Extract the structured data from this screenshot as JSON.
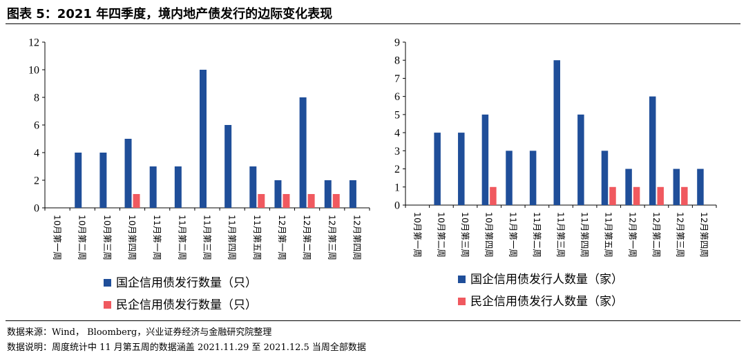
{
  "figure": {
    "title": "图表 5：2021 年四季度，境内地产债发行的边际变化表现",
    "source": "数据来源：Wind，  Bloomberg，兴业证券经济与金融研究院整理",
    "note": "数据说明：周度统计中 11 月第五周的数据涵盖 2021.11.29 至 2021.12.5 当周全部数据"
  },
  "chart_data": [
    {
      "type": "bar",
      "title": "",
      "xlabel": "",
      "ylabel": "",
      "categories": [
        "10月第一周",
        "10月第二周",
        "10月第三周",
        "10月第四周",
        "11月第一周",
        "11月第二周",
        "11月第三周",
        "11月第四周",
        "11月第五周",
        "12月第一周",
        "12月第二周",
        "12月第三周",
        "12月第四周"
      ],
      "series": [
        {
          "name": "国企信用债发行数量（只）",
          "values": [
            0,
            4,
            4,
            5,
            3,
            3,
            10,
            6,
            3,
            2,
            8,
            2,
            2
          ],
          "color": "#1f4e99"
        },
        {
          "name": "民企信用债发行数量（只）",
          "values": [
            0,
            0,
            0,
            1,
            0,
            0,
            0,
            0,
            1,
            1,
            1,
            1,
            0
          ],
          "color": "#f0595f"
        }
      ],
      "ylim": [
        0,
        12
      ],
      "yticks": [
        0,
        2,
        4,
        6,
        8,
        10,
        12
      ],
      "grid": false,
      "legend": "bottom"
    },
    {
      "type": "bar",
      "title": "",
      "xlabel": "",
      "ylabel": "",
      "categories": [
        "10月第一周",
        "10月第二周",
        "10月第三周",
        "10月第四周",
        "11月第一周",
        "11月第二周",
        "11月第三周",
        "11月第四周",
        "11月第五周",
        "12月第一周",
        "12月第二周",
        "12月第三周",
        "12月第四周"
      ],
      "series": [
        {
          "name": "国企信用债发行人数量（家）",
          "values": [
            0,
            4,
            4,
            5,
            3,
            3,
            8,
            5,
            3,
            2,
            6,
            2,
            2
          ],
          "color": "#1f4e99"
        },
        {
          "name": "民企信用债发行人数量（家）",
          "values": [
            0,
            0,
            0,
            1,
            0,
            0,
            0,
            0,
            1,
            1,
            1,
            1,
            0
          ],
          "color": "#f0595f"
        }
      ],
      "ylim": [
        0,
        9
      ],
      "yticks": [
        0,
        1,
        2,
        3,
        4,
        5,
        6,
        7,
        8,
        9
      ],
      "grid": false,
      "legend": "bottom"
    }
  ]
}
